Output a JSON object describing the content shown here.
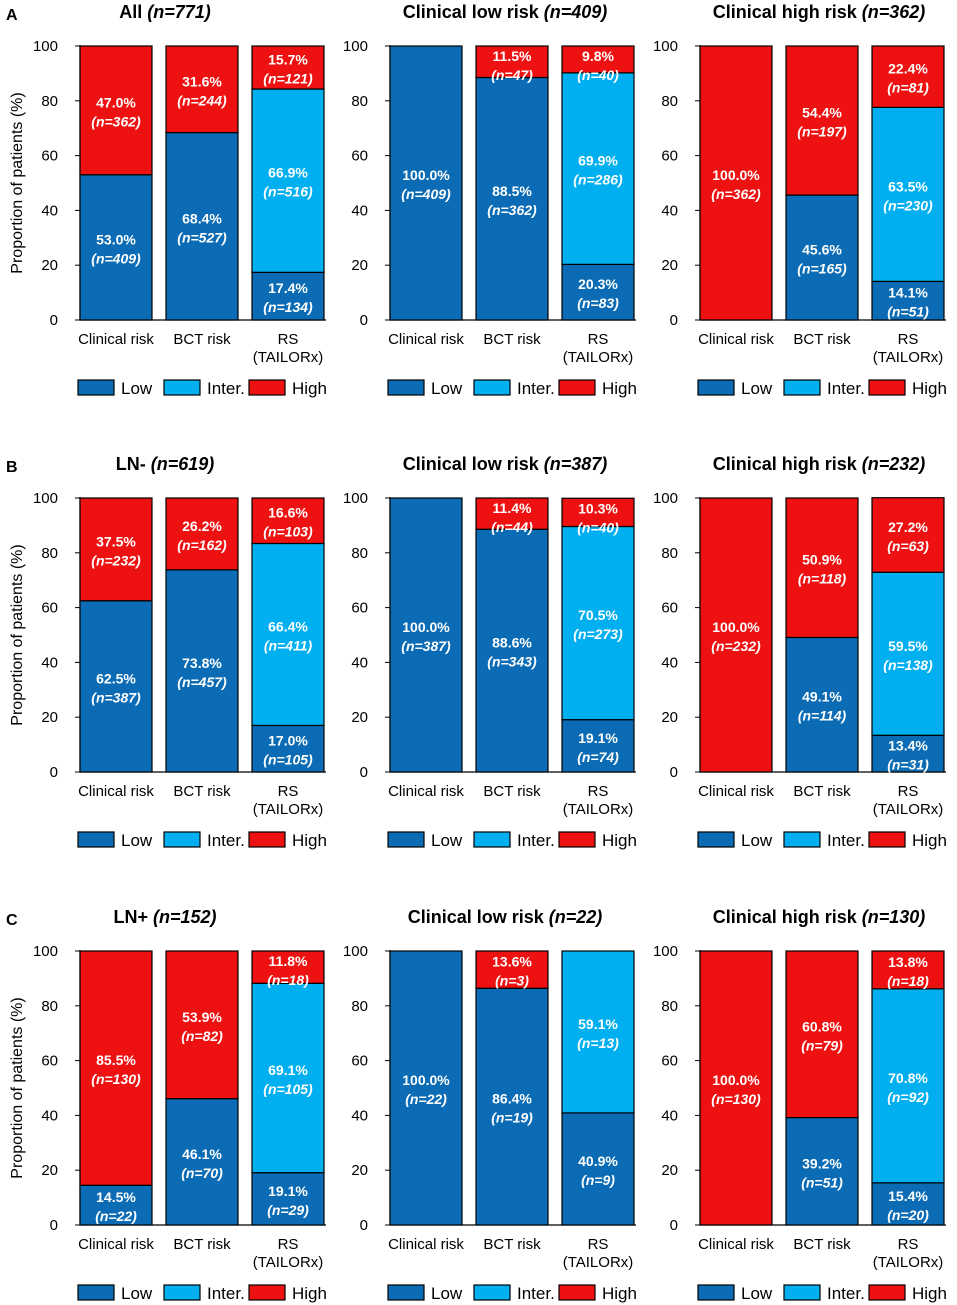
{
  "colors": {
    "low": "#0b6cb5",
    "inter": "#00afef",
    "high": "#ee1111",
    "outline": "#000000"
  },
  "y_axis_label": "Proportion of patients (%)",
  "categories": [
    "Clinical risk",
    "BCT risk",
    "RS (TAILORx)"
  ],
  "legend": [
    "Low",
    "Inter.",
    "High"
  ],
  "chart_data": [
    {
      "panel": "A",
      "charts": [
        {
          "type": "bar",
          "title": "All",
          "n_label": "(n=771)",
          "ylim": [
            0,
            100
          ],
          "yticks": [
            0,
            20,
            40,
            60,
            80,
            100
          ],
          "stacks": [
            [
              {
                "level": "low",
                "pct": 53.0,
                "n": 409
              },
              {
                "level": "high",
                "pct": 47.0,
                "n": 362
              }
            ],
            [
              {
                "level": "low",
                "pct": 68.4,
                "n": 527
              },
              {
                "level": "high",
                "pct": 31.6,
                "n": 244
              }
            ],
            [
              {
                "level": "low",
                "pct": 17.4,
                "n": 134
              },
              {
                "level": "inter",
                "pct": 66.9,
                "n": 516
              },
              {
                "level": "high",
                "pct": 15.7,
                "n": 121
              }
            ]
          ]
        },
        {
          "type": "bar",
          "title": "Clinical low risk",
          "n_label": "(n=409)",
          "ylim": [
            0,
            100
          ],
          "yticks": [
            0,
            20,
            40,
            60,
            80,
            100
          ],
          "stacks": [
            [
              {
                "level": "low",
                "pct": 100.0,
                "n": 409
              }
            ],
            [
              {
                "level": "low",
                "pct": 88.5,
                "n": 362
              },
              {
                "level": "high",
                "pct": 11.5,
                "n": 47
              }
            ],
            [
              {
                "level": "low",
                "pct": 20.3,
                "n": 83
              },
              {
                "level": "inter",
                "pct": 69.9,
                "n": 286
              },
              {
                "level": "high",
                "pct": 9.8,
                "n": 40
              }
            ]
          ]
        },
        {
          "type": "bar",
          "title": "Clinical high risk",
          "n_label": "(n=362)",
          "ylim": [
            0,
            100
          ],
          "yticks": [
            0,
            20,
            40,
            60,
            80,
            100
          ],
          "stacks": [
            [
              {
                "level": "high",
                "pct": 100.0,
                "n": 362
              }
            ],
            [
              {
                "level": "low",
                "pct": 45.6,
                "n": 165
              },
              {
                "level": "high",
                "pct": 54.4,
                "n": 197
              }
            ],
            [
              {
                "level": "low",
                "pct": 14.1,
                "n": 51
              },
              {
                "level": "inter",
                "pct": 63.5,
                "n": 230
              },
              {
                "level": "high",
                "pct": 22.4,
                "n": 81
              }
            ]
          ]
        }
      ]
    },
    {
      "panel": "B",
      "charts": [
        {
          "type": "bar",
          "title": "LN-",
          "n_label": "(n=619)",
          "ylim": [
            0,
            100
          ],
          "yticks": [
            0,
            20,
            40,
            60,
            80,
            100
          ],
          "stacks": [
            [
              {
                "level": "low",
                "pct": 62.5,
                "n": 387
              },
              {
                "level": "high",
                "pct": 37.5,
                "n": 232
              }
            ],
            [
              {
                "level": "low",
                "pct": 73.8,
                "n": 457
              },
              {
                "level": "high",
                "pct": 26.2,
                "n": 162
              }
            ],
            [
              {
                "level": "low",
                "pct": 17.0,
                "n": 105
              },
              {
                "level": "inter",
                "pct": 66.4,
                "n": 411
              },
              {
                "level": "high",
                "pct": 16.6,
                "n": 103
              }
            ]
          ]
        },
        {
          "type": "bar",
          "title": "Clinical low risk",
          "n_label": "(n=387)",
          "ylim": [
            0,
            100
          ],
          "yticks": [
            0,
            20,
            40,
            60,
            80,
            100
          ],
          "stacks": [
            [
              {
                "level": "low",
                "pct": 100.0,
                "n": 387
              }
            ],
            [
              {
                "level": "low",
                "pct": 88.6,
                "n": 343
              },
              {
                "level": "high",
                "pct": 11.4,
                "n": 44
              }
            ],
            [
              {
                "level": "low",
                "pct": 19.1,
                "n": 74
              },
              {
                "level": "inter",
                "pct": 70.5,
                "n": 273
              },
              {
                "level": "high",
                "pct": 10.3,
                "n": 40
              }
            ]
          ]
        },
        {
          "type": "bar",
          "title": "Clinical high risk",
          "n_label": "(n=232)",
          "ylim": [
            0,
            100
          ],
          "yticks": [
            0,
            20,
            40,
            60,
            80,
            100
          ],
          "stacks": [
            [
              {
                "level": "high",
                "pct": 100.0,
                "n": 232
              }
            ],
            [
              {
                "level": "low",
                "pct": 49.1,
                "n": 114
              },
              {
                "level": "high",
                "pct": 50.9,
                "n": 118
              }
            ],
            [
              {
                "level": "low",
                "pct": 13.4,
                "n": 31
              },
              {
                "level": "inter",
                "pct": 59.5,
                "n": 138
              },
              {
                "level": "high",
                "pct": 27.2,
                "n": 63
              }
            ]
          ]
        }
      ]
    },
    {
      "panel": "C",
      "charts": [
        {
          "type": "bar",
          "title": "LN+",
          "n_label": "(n=152)",
          "ylim": [
            0,
            100
          ],
          "yticks": [
            0,
            20,
            40,
            60,
            80,
            100
          ],
          "stacks": [
            [
              {
                "level": "low",
                "pct": 14.5,
                "n": 22
              },
              {
                "level": "high",
                "pct": 85.5,
                "n": 130
              }
            ],
            [
              {
                "level": "low",
                "pct": 46.1,
                "n": 70
              },
              {
                "level": "high",
                "pct": 53.9,
                "n": 82
              }
            ],
            [
              {
                "level": "low",
                "pct": 19.1,
                "n": 29
              },
              {
                "level": "inter",
                "pct": 69.1,
                "n": 105
              },
              {
                "level": "high",
                "pct": 11.8,
                "n": 18
              }
            ]
          ]
        },
        {
          "type": "bar",
          "title": "Clinical low risk",
          "n_label": "(n=22)",
          "ylim": [
            0,
            100
          ],
          "yticks": [
            0,
            20,
            40,
            60,
            80,
            100
          ],
          "stacks": [
            [
              {
                "level": "low",
                "pct": 100.0,
                "n": 22
              }
            ],
            [
              {
                "level": "low",
                "pct": 86.4,
                "n": 19
              },
              {
                "level": "high",
                "pct": 13.6,
                "n": 3
              }
            ],
            [
              {
                "level": "low",
                "pct": 40.9,
                "n": 9
              },
              {
                "level": "inter",
                "pct": 59.1,
                "n": 13
              }
            ]
          ]
        },
        {
          "type": "bar",
          "title": "Clinical high risk",
          "n_label": "(n=130)",
          "ylim": [
            0,
            100
          ],
          "yticks": [
            0,
            20,
            40,
            60,
            80,
            100
          ],
          "stacks": [
            [
              {
                "level": "high",
                "pct": 100.0,
                "n": 130
              }
            ],
            [
              {
                "level": "low",
                "pct": 39.2,
                "n": 51
              },
              {
                "level": "high",
                "pct": 60.8,
                "n": 79
              }
            ],
            [
              {
                "level": "low",
                "pct": 15.4,
                "n": 20
              },
              {
                "level": "inter",
                "pct": 70.8,
                "n": 92
              },
              {
                "level": "high",
                "pct": 13.8,
                "n": 18
              }
            ]
          ]
        }
      ]
    }
  ]
}
